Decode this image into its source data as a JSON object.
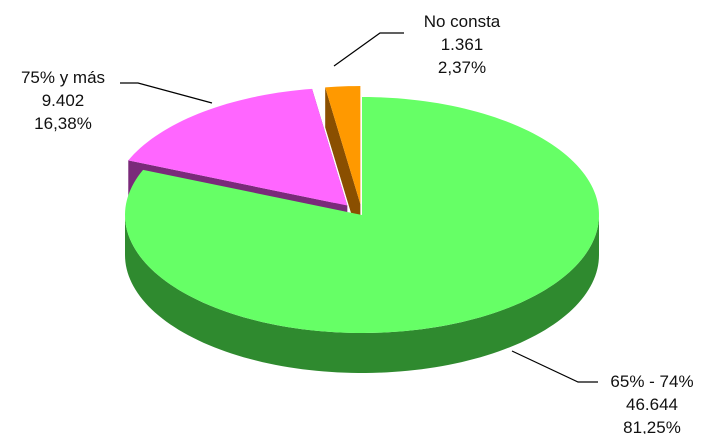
{
  "chart_data": {
    "type": "pie",
    "title": "",
    "style": "3d-exploded",
    "legend": "none",
    "slices": [
      {
        "label": "65% - 74%",
        "display_label": "65%  - 74%",
        "value": 46644,
        "value_text": "46.644",
        "percent": 81.25,
        "percent_text": "81,25%",
        "color": "#66ff66",
        "side_color": "#2f8a2f"
      },
      {
        "label": "No consta",
        "display_label": "No consta",
        "value": 1361,
        "value_text": "1.361",
        "percent": 2.37,
        "percent_text": "2,37%",
        "color": "#ff9900",
        "side_color": "#8a4f00"
      },
      {
        "label": "75% y más",
        "display_label": "75% y más",
        "value": 9402,
        "value_text": "9.402",
        "percent": 16.38,
        "percent_text": "16,38%",
        "color": "#ff66ff",
        "side_color": "#7a2a7a"
      }
    ]
  }
}
